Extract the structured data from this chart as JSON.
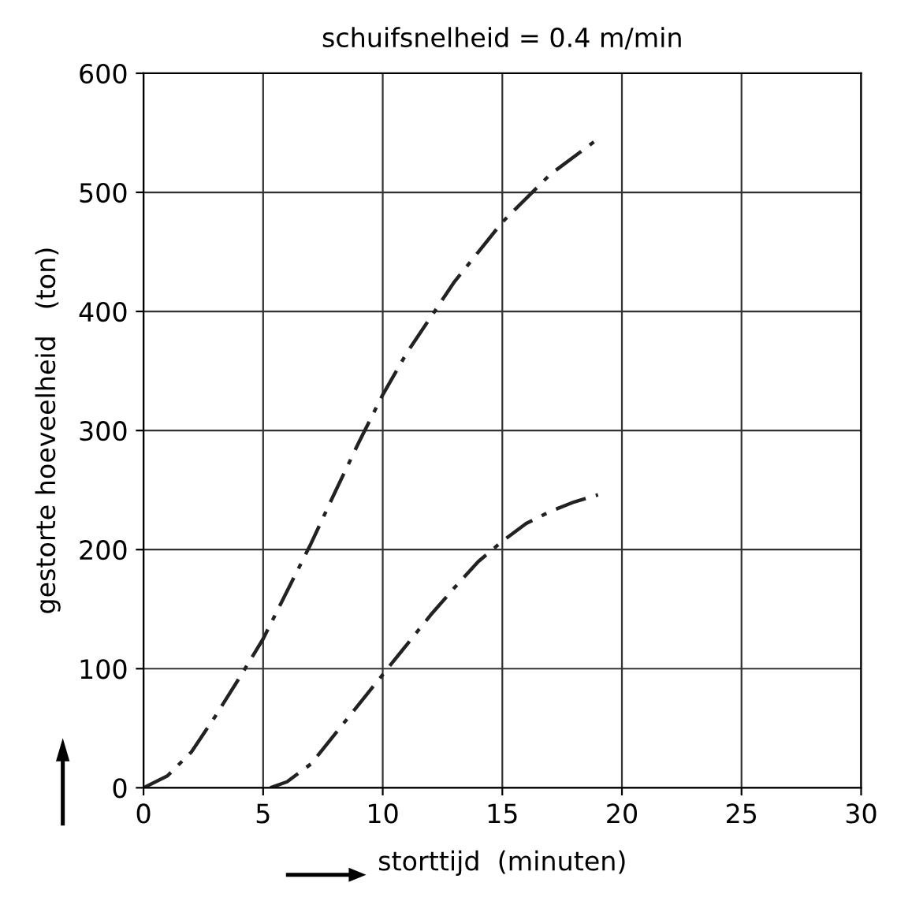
{
  "chart_data": {
    "type": "line",
    "title": "schuifsnelheid = 0.4 m/min",
    "xlabel": "storttijd  (minuten)",
    "ylabel": "gestorte hoeveelheid   (ton)",
    "xlim": [
      0,
      30
    ],
    "ylim": [
      0,
      600
    ],
    "xticks": [
      0,
      5,
      10,
      15,
      20,
      25,
      30
    ],
    "yticks": [
      0,
      100,
      200,
      300,
      400,
      500,
      600
    ],
    "grid": true,
    "line_style": "dashed",
    "marker": "none",
    "series": [
      {
        "color": "#222222",
        "x": [
          0,
          1,
          2,
          3,
          4,
          5,
          6,
          7,
          8,
          9,
          10,
          11,
          12,
          13,
          14,
          15,
          16,
          17,
          18,
          19
        ],
        "values": [
          0,
          10,
          30,
          60,
          92,
          125,
          165,
          205,
          248,
          290,
          330,
          365,
          395,
          425,
          450,
          475,
          495,
          515,
          530,
          545
        ]
      },
      {
        "color": "#222222",
        "x": [
          5.3,
          6,
          7,
          8,
          9,
          10,
          11,
          12,
          13,
          14,
          15,
          16,
          17,
          18,
          19
        ],
        "values": [
          0,
          5,
          20,
          45,
          70,
          95,
          120,
          145,
          168,
          190,
          207,
          222,
          232,
          240,
          246
        ]
      }
    ]
  }
}
